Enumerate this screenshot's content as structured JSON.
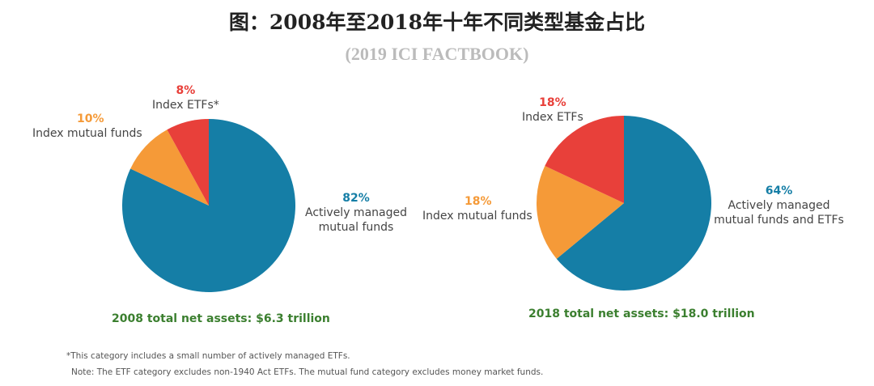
{
  "title": "图：2008年至2018年十年不同类型基金占比",
  "subtitle": "(2019 ICI FACTBOOK)",
  "colors": {
    "actively_managed": "#157ea6",
    "index_mutual_funds": "#f59a38",
    "index_etfs": "#e8403a",
    "total_label": "#3b7f2f"
  },
  "chart_data": [
    {
      "type": "pie",
      "categories": [
        "Actively managed mutual funds",
        "Index mutual funds",
        "Index ETFs*"
      ],
      "values": [
        82,
        10,
        8
      ],
      "labels": [
        "82%",
        "10%",
        "8%"
      ],
      "caption": "2008 total net assets: $6.3 trillion"
    },
    {
      "type": "pie",
      "categories": [
        "Actively managed mutual funds and ETFs",
        "Index mutual funds",
        "Index ETFs"
      ],
      "values": [
        64,
        18,
        18
      ],
      "labels": [
        "64%",
        "18%",
        "18%"
      ],
      "caption": "2018 total net assets: $18.0 trillion"
    }
  ],
  "footnotes": [
    "*This category includes a small number of actively managed ETFs.",
    "Note: The ETF category excludes non-1940 Act ETFs. The mutual fund category excludes money market funds."
  ]
}
